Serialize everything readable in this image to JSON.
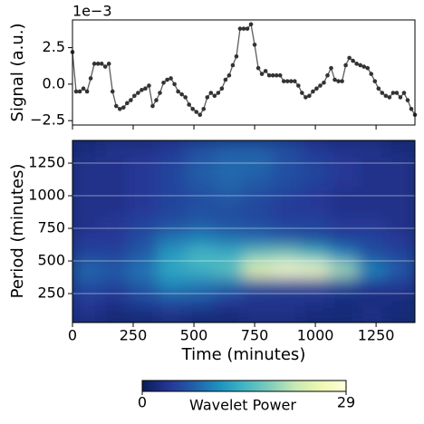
{
  "chart_data": [
    {
      "type": "line",
      "ylabel": "Signal (a.u.)",
      "offset_text": "1e−3",
      "color": "#333333",
      "x": [
        0,
        15,
        30,
        45,
        60,
        75,
        90,
        105,
        120,
        135,
        150,
        165,
        180,
        195,
        210,
        225,
        240,
        255,
        270,
        285,
        300,
        315,
        330,
        345,
        360,
        375,
        390,
        405,
        420,
        435,
        450,
        465,
        480,
        495,
        510,
        525,
        540,
        555,
        570,
        585,
        600,
        615,
        630,
        645,
        660,
        675,
        690,
        705,
        720,
        735,
        750,
        765,
        780,
        795,
        810,
        825,
        840,
        855,
        870,
        885,
        900,
        915,
        930,
        945,
        960,
        975,
        990,
        1005,
        1020,
        1035,
        1050,
        1065,
        1080,
        1095,
        1110,
        1125,
        1140,
        1155,
        1170,
        1185,
        1200,
        1215,
        1230,
        1245,
        1260,
        1275,
        1290,
        1305,
        1320,
        1335,
        1350,
        1365,
        1380,
        1395,
        1410
      ],
      "values": [
        2.2,
        -0.5,
        -0.5,
        -0.3,
        -0.5,
        0.4,
        1.4,
        1.4,
        1.4,
        1.2,
        1.4,
        -0.5,
        -1.5,
        -1.7,
        -1.6,
        -1.3,
        -1.1,
        -0.8,
        -0.6,
        -0.4,
        -0.3,
        -0.1,
        -1.5,
        -1.1,
        -0.6,
        0.1,
        0.3,
        0.4,
        0,
        -0.5,
        -0.7,
        -0.9,
        -1.4,
        -1.7,
        -1.9,
        -2.1,
        -1.7,
        -0.9,
        -0.6,
        -0.8,
        -0.6,
        -0.3,
        0.3,
        0.6,
        1.3,
        1.9,
        3.8,
        3.8,
        3.8,
        4.1,
        2.7,
        1.1,
        0.7,
        0.9,
        0.6,
        0.6,
        0.6,
        0.6,
        0.2,
        0.2,
        0.2,
        0.2,
        -0.1,
        -0.6,
        -0.9,
        -0.8,
        -0.5,
        -0.3,
        -0.1,
        0.1,
        0.6,
        1.1,
        0.3,
        0.2,
        0.2,
        1.3,
        1.8,
        1.6,
        1.4,
        1.3,
        1.2,
        1.1,
        0.7,
        0.2,
        -0.3,
        -0.6,
        -0.8,
        -0.9,
        -0.6,
        -0.6,
        -0.9,
        -0.6,
        -1.1,
        -1.7,
        -2.1
      ],
      "xlim": [
        0,
        1410
      ],
      "ylim": [
        -2.8,
        4.4
      ],
      "yticks": [
        {
          "value": -2.5,
          "label": "−2.5"
        },
        {
          "value": 0,
          "label": "0.0"
        },
        2.5
      ]
    },
    {
      "type": "heatmap",
      "xlabel": "Time (minutes)",
      "ylabel": "Period (minutes)",
      "xlim": [
        0,
        1410
      ],
      "ylim": [
        28,
        1424
      ],
      "xticks": [
        0,
        250,
        500,
        750,
        1000,
        1250
      ],
      "yticks": [
        250,
        500,
        750,
        1000,
        1250
      ],
      "grid": true,
      "xbins": [
        0,
        117.5,
        235,
        352.5,
        470,
        587.5,
        705,
        822.5,
        940,
        1057.5,
        1175,
        1292.5,
        1410
      ],
      "ybins": [
        28,
        144,
        260,
        376,
        492,
        608,
        724,
        840,
        956,
        1072,
        1188,
        1304,
        1424
      ],
      "z": [
        [
          3,
          2,
          2,
          3,
          2,
          2,
          3,
          3,
          2,
          2,
          3,
          2
        ],
        [
          4,
          3,
          5,
          6,
          6,
          4,
          3,
          3,
          3,
          2,
          2,
          2
        ],
        [
          6,
          5,
          7,
          10,
          9,
          8,
          6,
          5,
          5,
          5,
          4,
          4
        ],
        [
          8,
          7,
          9,
          13,
          14,
          16,
          25,
          28,
          27,
          20,
          10,
          7
        ],
        [
          5,
          5,
          7,
          12,
          15,
          14,
          17,
          18,
          15,
          10,
          6,
          5
        ],
        [
          4,
          4,
          6,
          9,
          10,
          9,
          8,
          7,
          6,
          5,
          5,
          4
        ],
        [
          3,
          4,
          5,
          6,
          7,
          6,
          6,
          5,
          5,
          4,
          4,
          3
        ],
        [
          3,
          3,
          4,
          5,
          6,
          6,
          5,
          4,
          4,
          3,
          3,
          3
        ],
        [
          3,
          3,
          4,
          5,
          6,
          7,
          6,
          5,
          4,
          3,
          3,
          3
        ],
        [
          3,
          3,
          4,
          5,
          7,
          8,
          7,
          6,
          5,
          4,
          3,
          3
        ],
        [
          3,
          3,
          4,
          5,
          7,
          8,
          8,
          6,
          5,
          4,
          3,
          3
        ],
        [
          2,
          3,
          3,
          4,
          6,
          7,
          7,
          6,
          4,
          3,
          3,
          2
        ]
      ],
      "zlim": [
        0,
        29
      ],
      "zticks": [
        0,
        29
      ],
      "colorbar_label": "Wavelet Power",
      "colormap": [
        "#081d58",
        "#253494",
        "#225ea8",
        "#1d91c0",
        "#41b6c4",
        "#7fcdbb",
        "#c7e9b4",
        "#edf8b1",
        "#ffffd9"
      ]
    }
  ]
}
